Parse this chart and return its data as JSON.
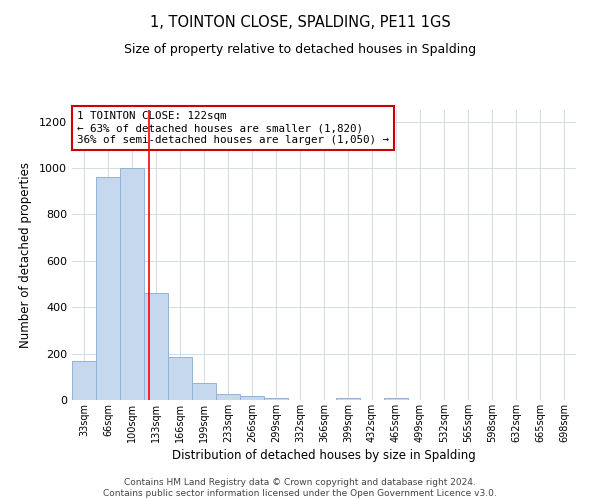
{
  "title": "1, TOINTON CLOSE, SPALDING, PE11 1GS",
  "subtitle": "Size of property relative to detached houses in Spalding",
  "xlabel": "Distribution of detached houses by size in Spalding",
  "ylabel": "Number of detached properties",
  "bar_labels": [
    "33sqm",
    "66sqm",
    "100sqm",
    "133sqm",
    "166sqm",
    "199sqm",
    "233sqm",
    "266sqm",
    "299sqm",
    "332sqm",
    "366sqm",
    "399sqm",
    "432sqm",
    "465sqm",
    "499sqm",
    "532sqm",
    "565sqm",
    "598sqm",
    "632sqm",
    "665sqm",
    "698sqm"
  ],
  "bar_values": [
    170,
    960,
    1000,
    460,
    185,
    75,
    25,
    18,
    10,
    0,
    0,
    10,
    0,
    10,
    0,
    0,
    0,
    0,
    0,
    0,
    0
  ],
  "bar_color": "#c5d8ed",
  "bar_edge_color": "#92b4d4",
  "grid_color": "#d0dde8",
  "background_color": "#ffffff",
  "vline_color": "red",
  "vline_position": 2.7,
  "ylim": [
    0,
    1250
  ],
  "yticks": [
    0,
    200,
    400,
    600,
    800,
    1000,
    1200
  ],
  "annotation_title": "1 TOINTON CLOSE: 122sqm",
  "annotation_line1": "← 63% of detached houses are smaller (1,820)",
  "annotation_line2": "36% of semi-detached houses are larger (1,050) →",
  "annotation_box_color": "#ffffff",
  "annotation_box_edge": "#cc0000",
  "footer_line1": "Contains HM Land Registry data © Crown copyright and database right 2024.",
  "footer_line2": "Contains public sector information licensed under the Open Government Licence v3.0."
}
